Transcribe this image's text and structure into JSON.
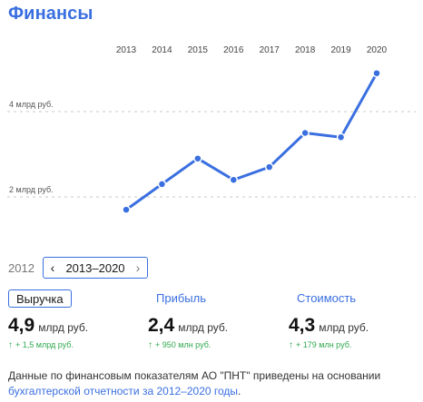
{
  "title": "Финансы",
  "chart_data": {
    "type": "line",
    "x": [
      "2013",
      "2014",
      "2015",
      "2016",
      "2017",
      "2018",
      "2019",
      "2020"
    ],
    "series": [
      {
        "values": [
          1.7,
          2.3,
          2.9,
          2.4,
          2.7,
          3.5,
          3.4,
          4.9
        ]
      }
    ],
    "y_axis_labels": [
      {
        "value": 4,
        "label": "4 млрд руб."
      },
      {
        "value": 2,
        "label": "2 млрд руб."
      }
    ],
    "ylim": [
      1.3,
      5.3
    ],
    "color": "#3a6fe0",
    "gridlines": "dashed"
  },
  "range": {
    "start_label": "2012",
    "current": "2013–2020",
    "prev_icon": "chevron-left-icon",
    "next_icon": "chevron-right-icon"
  },
  "metrics": [
    {
      "tab": "Выручка",
      "value": "4,9",
      "unit": "млрд руб.",
      "delta_arrow": "↑",
      "delta": "+ 1,5 млрд руб."
    },
    {
      "tab": "Прибыль",
      "value": "2,4",
      "unit": "млрд руб.",
      "delta_arrow": "↑",
      "delta": "+ 950 млн руб."
    },
    {
      "tab": "Стоимость",
      "value": "4,3",
      "unit": "млрд руб.",
      "delta_arrow": "↑",
      "delta": "+ 179 млн руб."
    }
  ],
  "note": {
    "text": "Данные по финансовым показателям АО \"ПНТ\" приведены на основании ",
    "link": "бухгалтерской отчетности за 2012–2020 годы",
    "tail": "."
  },
  "colors": {
    "accent": "#3a6fe0",
    "positive": "#2fa84f"
  }
}
